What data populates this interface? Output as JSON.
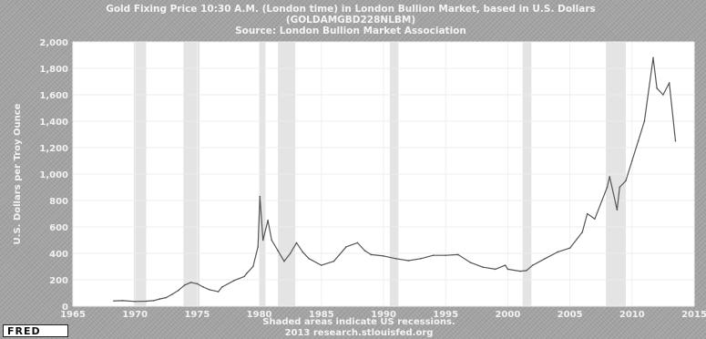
{
  "chart_data": {
    "type": "line",
    "title": "Gold Fixing Price 10:30 A.M. (London time) in London Bullion Market, based in U.S. Dollars",
    "series_id": "(GOLDAMGBD228NLBM)",
    "source": "Source: London Bullion Market Association",
    "ylabel": "U.S. Dollars per Troy Ounce",
    "xlim": [
      1965,
      2015
    ],
    "ylim": [
      0,
      2000
    ],
    "yticks": [
      "0",
      "200",
      "400",
      "600",
      "800",
      "1,000",
      "1,200",
      "1,400",
      "1,600",
      "1,800",
      "2,000"
    ],
    "ytick_values": [
      0,
      200,
      400,
      600,
      800,
      1000,
      1200,
      1400,
      1600,
      1800,
      2000
    ],
    "xticks": [
      "1965",
      "1970",
      "1975",
      "1980",
      "1985",
      "1990",
      "1995",
      "2000",
      "2005",
      "2010",
      "2015"
    ],
    "xtick_values": [
      1965,
      1970,
      1975,
      1980,
      1985,
      1990,
      1995,
      2000,
      2005,
      2010,
      2015
    ],
    "grid": true,
    "recessions": [
      [
        1969.9,
        1970.9
      ],
      [
        1973.9,
        1975.2
      ],
      [
        1980.0,
        1980.5
      ],
      [
        1981.5,
        1982.9
      ],
      [
        1990.5,
        1991.2
      ],
      [
        2001.2,
        2001.9
      ],
      [
        2007.9,
        2009.5
      ]
    ],
    "series": [
      {
        "x": [
          1968.3,
          1969,
          1970,
          1970.9,
          1971.5,
          1972,
          1972.5,
          1973,
          1973.5,
          1974,
          1974.5,
          1975,
          1975.5,
          1976,
          1976.7,
          1977,
          1978,
          1978.8,
          1979,
          1979.5,
          1979.9,
          1980.05,
          1980.3,
          1980.7,
          1981,
          1981.5,
          1982,
          1982.5,
          1983,
          1983.5,
          1984,
          1985,
          1986,
          1987,
          1987.9,
          1988.5,
          1989,
          1990,
          1991,
          1992,
          1993,
          1994,
          1995,
          1996,
          1997,
          1998,
          1999,
          1999.8,
          2000,
          2001,
          2001.5,
          2002,
          2003,
          2004,
          2005,
          2006,
          2006.4,
          2007,
          2008,
          2008.2,
          2008.8,
          2009,
          2009.5,
          2010,
          2010.5,
          2011,
          2011.7,
          2012,
          2012.5,
          2013,
          2013.5
        ],
        "values": [
          40,
          42,
          36,
          38,
          42,
          55,
          65,
          90,
          120,
          160,
          180,
          170,
          145,
          125,
          110,
          145,
          195,
          225,
          250,
          300,
          450,
          830,
          500,
          650,
          500,
          420,
          340,
          400,
          480,
          410,
          360,
          310,
          340,
          450,
          480,
          420,
          390,
          380,
          360,
          345,
          360,
          385,
          385,
          390,
          330,
          295,
          280,
          310,
          280,
          265,
          270,
          310,
          360,
          410,
          440,
          560,
          700,
          660,
          900,
          980,
          730,
          900,
          950,
          1100,
          1250,
          1400,
          1880,
          1650,
          1600,
          1690,
          1250
        ]
      }
    ],
    "recession_note": "Shaded areas indicate US recessions.",
    "footer": "2013 research.stlouisfed.org",
    "logo_text": "FRED"
  }
}
